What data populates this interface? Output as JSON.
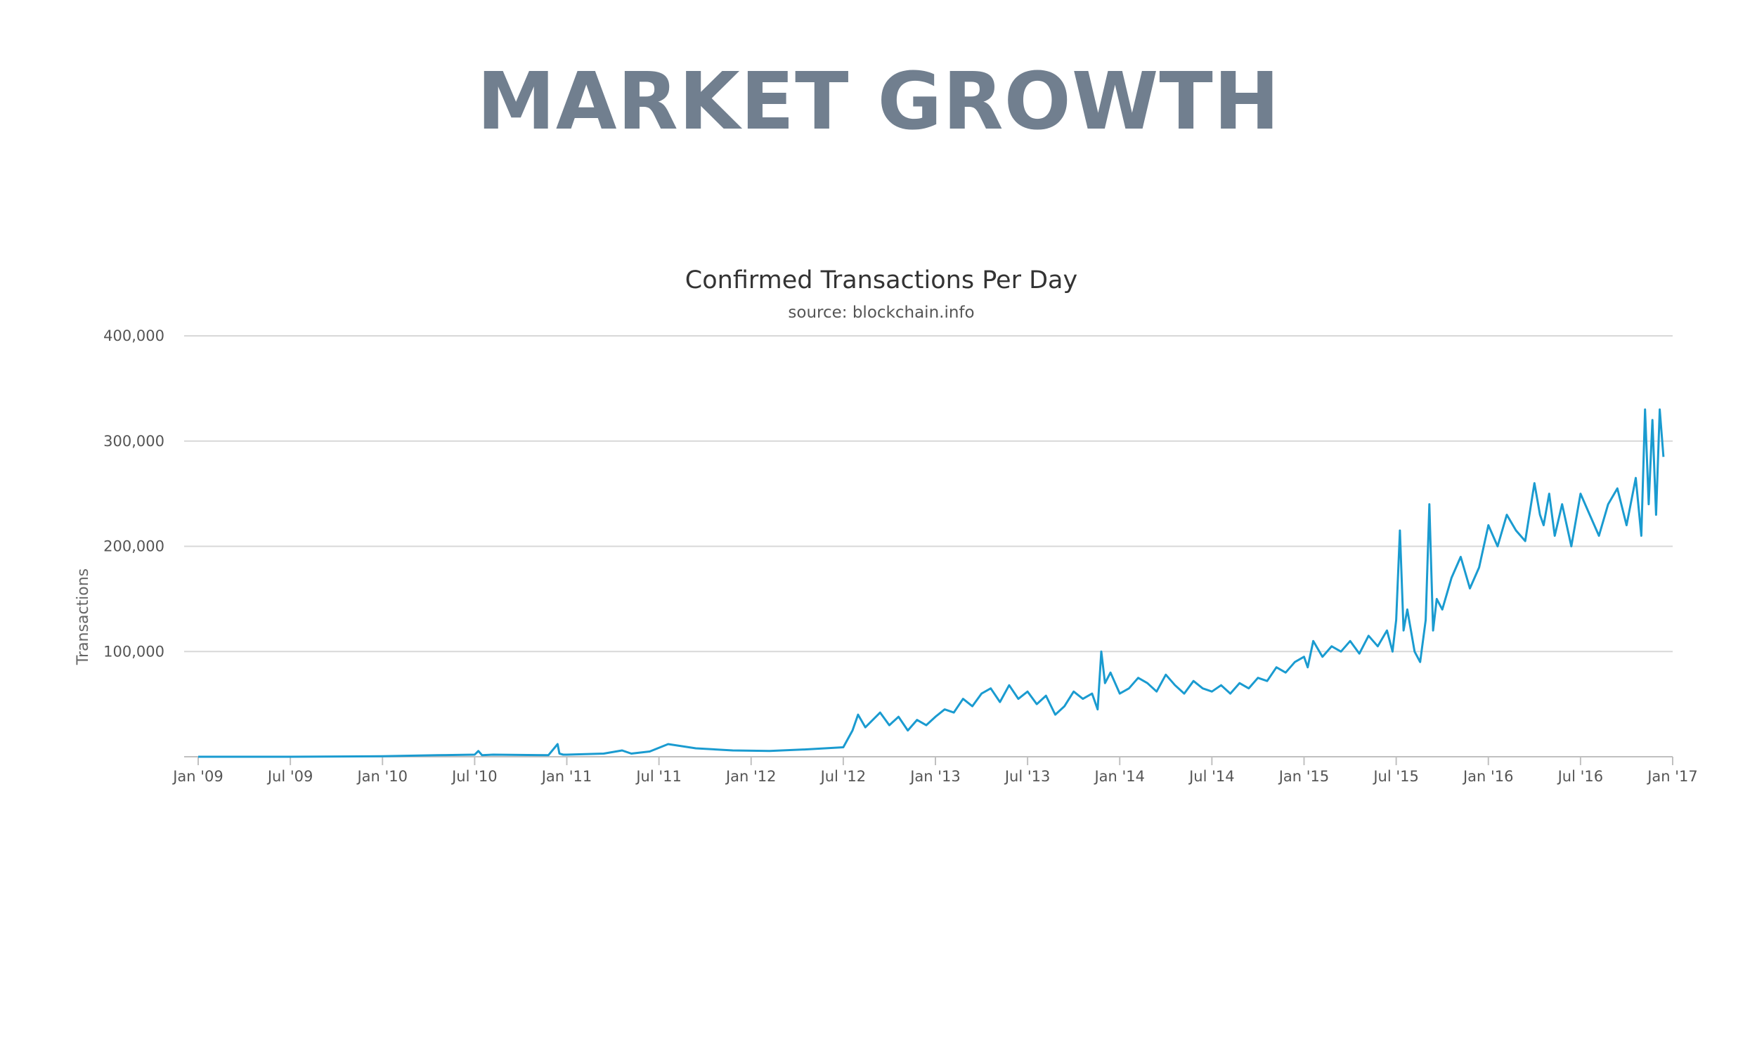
{
  "slide": {
    "title": "MARKET GROWTH"
  },
  "chart_data": {
    "type": "line",
    "title": "Confirmed Transactions Per Day",
    "subtitle": "source: blockchain.info",
    "xlabel": "",
    "ylabel": "Transactions",
    "ylim": [
      0,
      400000
    ],
    "yticks": [
      100000,
      200000,
      300000,
      400000
    ],
    "ytick_labels": [
      "100,000",
      "200,000",
      "300,000",
      "400,000"
    ],
    "xlim": [
      2009.0,
      2017.0
    ],
    "xticks": [
      2009.0,
      2009.5,
      2010.0,
      2010.5,
      2011.0,
      2011.5,
      2012.0,
      2012.5,
      2013.0,
      2013.5,
      2014.0,
      2014.5,
      2015.0,
      2015.5,
      2016.0,
      2016.5,
      2017.0
    ],
    "xtick_labels": [
      "Jan '09",
      "Jul '09",
      "Jan '10",
      "Jul '10",
      "Jan '11",
      "Jul '11",
      "Jan '12",
      "Jul '12",
      "Jan '13",
      "Jul '13",
      "Jan '14",
      "Jul '14",
      "Jan '15",
      "Jul '15",
      "Jan '16",
      "Jul '16",
      "Jan '17"
    ],
    "grid": true,
    "color": "#1a9bd0",
    "series": [
      {
        "name": "Transactions",
        "x": [
          2009.0,
          2009.5,
          2010.0,
          2010.3,
          2010.5,
          2010.52,
          2010.54,
          2010.6,
          2010.9,
          2010.95,
          2010.96,
          2010.98,
          2011.0,
          2011.2,
          2011.3,
          2011.35,
          2011.45,
          2011.55,
          2011.7,
          2011.9,
          2012.1,
          2012.3,
          2012.5,
          2012.55,
          2012.58,
          2012.62,
          2012.66,
          2012.7,
          2012.75,
          2012.8,
          2012.85,
          2012.9,
          2012.95,
          2013.0,
          2013.05,
          2013.1,
          2013.15,
          2013.2,
          2013.25,
          2013.3,
          2013.35,
          2013.4,
          2013.45,
          2013.5,
          2013.55,
          2013.6,
          2013.65,
          2013.7,
          2013.75,
          2013.8,
          2013.85,
          2013.88,
          2013.9,
          2013.92,
          2013.95,
          2014.0,
          2014.05,
          2014.1,
          2014.15,
          2014.2,
          2014.25,
          2014.3,
          2014.35,
          2014.4,
          2014.45,
          2014.5,
          2014.55,
          2014.6,
          2014.65,
          2014.7,
          2014.75,
          2014.8,
          2014.85,
          2014.9,
          2014.95,
          2015.0,
          2015.02,
          2015.05,
          2015.1,
          2015.15,
          2015.2,
          2015.25,
          2015.3,
          2015.35,
          2015.4,
          2015.45,
          2015.48,
          2015.5,
          2015.52,
          2015.54,
          2015.56,
          2015.6,
          2015.63,
          2015.66,
          2015.68,
          2015.7,
          2015.72,
          2015.75,
          2015.8,
          2015.85,
          2015.9,
          2015.95,
          2016.0,
          2016.05,
          2016.1,
          2016.15,
          2016.2,
          2016.25,
          2016.28,
          2016.3,
          2016.33,
          2016.36,
          2016.4,
          2016.45,
          2016.5,
          2016.55,
          2016.6,
          2016.65,
          2016.7,
          2016.75,
          2016.8,
          2016.83,
          2016.85,
          2016.87,
          2016.89,
          2016.91,
          2016.93,
          2016.95
        ],
        "y": [
          0,
          0,
          500,
          1500,
          2000,
          5500,
          1500,
          2000,
          1500,
          12000,
          3000,
          2000,
          2000,
          3000,
          6000,
          3000,
          5000,
          12000,
          8000,
          6000,
          5500,
          7000,
          9000,
          25000,
          40000,
          28000,
          35000,
          42000,
          30000,
          38000,
          25000,
          35000,
          30000,
          38000,
          45000,
          42000,
          55000,
          48000,
          60000,
          65000,
          52000,
          68000,
          55000,
          62000,
          50000,
          58000,
          40000,
          48000,
          62000,
          55000,
          60000,
          45000,
          100000,
          70000,
          80000,
          60000,
          65000,
          75000,
          70000,
          62000,
          78000,
          68000,
          60000,
          72000,
          65000,
          62000,
          68000,
          60000,
          70000,
          65000,
          75000,
          72000,
          85000,
          80000,
          90000,
          95000,
          85000,
          110000,
          95000,
          105000,
          100000,
          110000,
          98000,
          115000,
          105000,
          120000,
          100000,
          130000,
          215000,
          120000,
          140000,
          100000,
          90000,
          130000,
          240000,
          120000,
          150000,
          140000,
          170000,
          190000,
          160000,
          180000,
          220000,
          200000,
          230000,
          215000,
          205000,
          260000,
          230000,
          220000,
          250000,
          210000,
          240000,
          200000,
          250000,
          230000,
          210000,
          240000,
          255000,
          220000,
          265000,
          210000,
          330000,
          240000,
          320000,
          230000,
          330000,
          285000
        ]
      }
    ]
  }
}
